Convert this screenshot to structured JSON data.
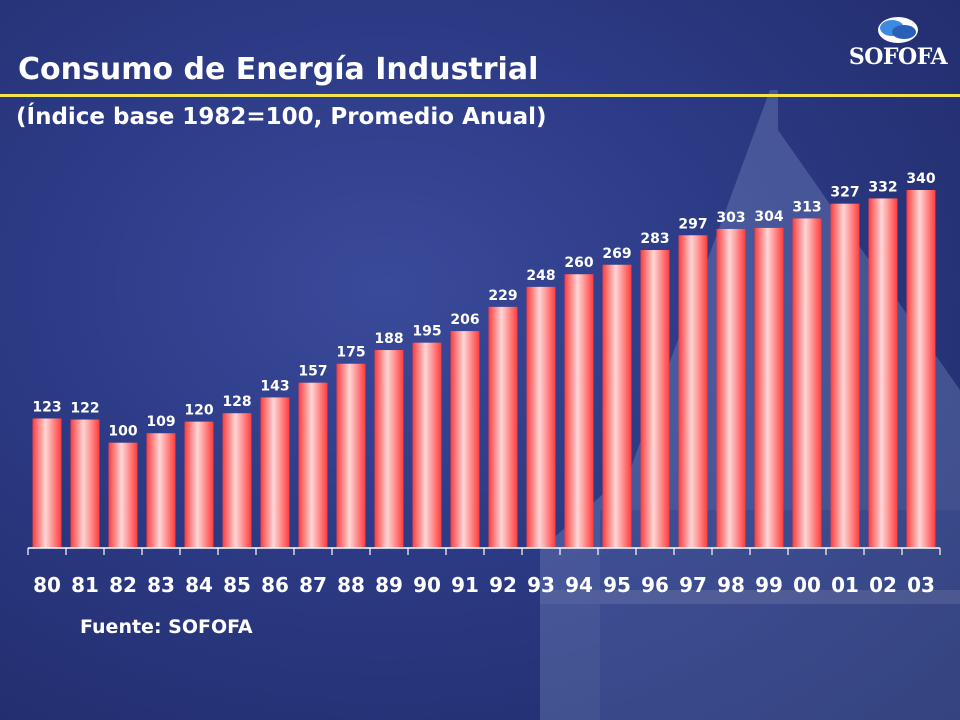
{
  "header": {
    "title": "Consumo de Energía Industrial",
    "subtitle": "(Índice base 1982=100, Promedio Anual)"
  },
  "logo": {
    "text": "SOFOFA"
  },
  "footer": {
    "source": "Fuente: SOFOFA"
  },
  "colors": {
    "bar": "#ff3b3b",
    "bar_highlight": "#ffd6d6",
    "axis": "#ffffff",
    "title_rule": "#f2e64a"
  },
  "chart_data": {
    "type": "bar",
    "categories": [
      "80",
      "81",
      "82",
      "83",
      "84",
      "85",
      "86",
      "87",
      "88",
      "89",
      "90",
      "91",
      "92",
      "93",
      "94",
      "95",
      "96",
      "97",
      "98",
      "99",
      "00",
      "01",
      "02",
      "03"
    ],
    "values": [
      123,
      122,
      100,
      109,
      120,
      128,
      143,
      157,
      175,
      188,
      195,
      206,
      229,
      248,
      260,
      269,
      283,
      297,
      303,
      304,
      313,
      327,
      332,
      340
    ],
    "data_labels": [
      "123",
      "122",
      "100",
      "109",
      "120",
      "128",
      "143",
      "157",
      "175",
      "188",
      "195",
      "206",
      "229",
      "248",
      "260",
      "269",
      "283",
      "297",
      "303",
      "304",
      "313",
      "327",
      "332",
      "340"
    ],
    "ylim": [
      0,
      340
    ],
    "grid": false,
    "legend": "none"
  }
}
